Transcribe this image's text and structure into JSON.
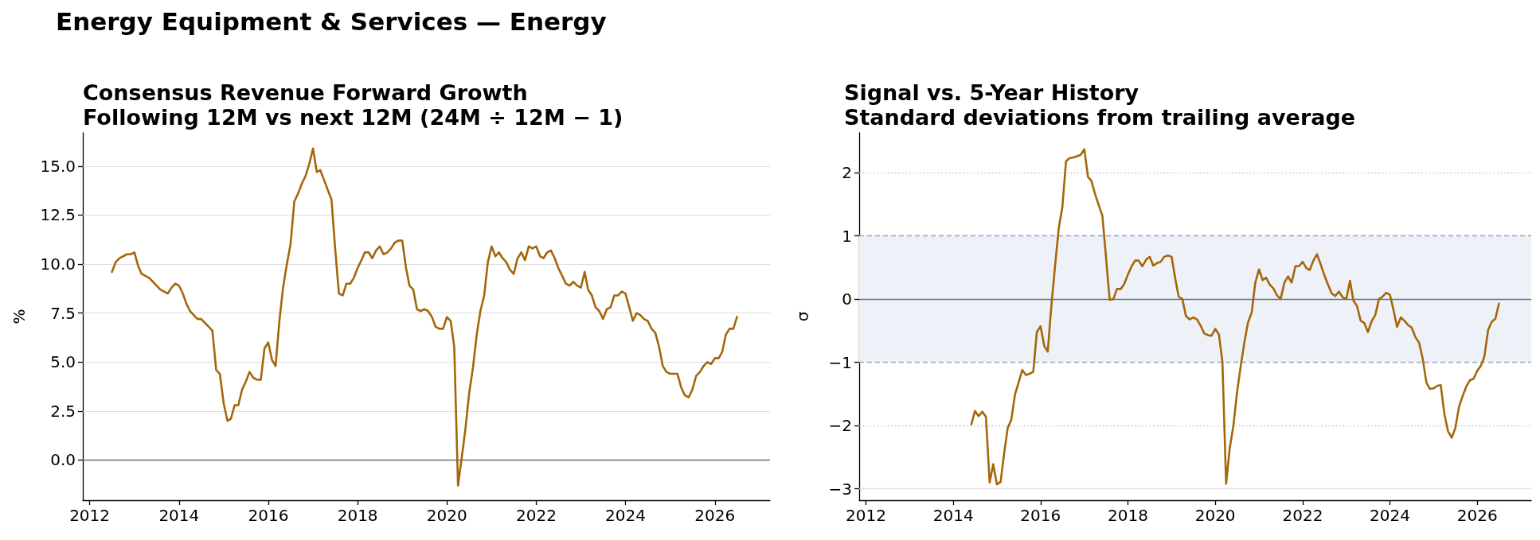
{
  "chart_data": [
    {
      "type": "line",
      "title": "Consensus Revenue Forward Growth",
      "subtitle": "Following 12M vs next 12M (24M ÷ 12M − 1)",
      "ylabel": "%",
      "annotations": [
        "Energy Equipment & Services — Energy"
      ],
      "x": [
        "2012-07",
        "2012-08",
        "2012-09",
        "2012-10",
        "2012-11",
        "2012-12",
        "2013-01",
        "2013-02",
        "2013-03",
        "2013-04",
        "2013-05",
        "2013-06",
        "2013-07",
        "2013-08",
        "2013-09",
        "2013-10",
        "2013-11",
        "2013-12",
        "2014-01",
        "2014-02",
        "2014-03",
        "2014-04",
        "2014-05",
        "2014-06",
        "2014-07",
        "2014-08",
        "2014-09",
        "2014-10",
        "2014-11",
        "2014-12",
        "2015-01",
        "2015-02",
        "2015-03",
        "2015-04",
        "2015-05",
        "2015-06",
        "2015-07",
        "2015-08",
        "2015-09",
        "2015-10",
        "2015-11",
        "2015-12",
        "2016-01",
        "2016-02",
        "2016-03",
        "2016-04",
        "2016-05",
        "2016-06",
        "2016-07",
        "2016-08",
        "2016-09",
        "2016-10",
        "2016-11",
        "2016-12",
        "2017-01",
        "2017-02",
        "2017-03",
        "2017-04",
        "2017-05",
        "2017-06",
        "2017-07",
        "2017-08",
        "2017-09",
        "2017-10",
        "2017-11",
        "2017-12",
        "2018-01",
        "2018-02",
        "2018-03",
        "2018-04",
        "2018-05",
        "2018-06",
        "2018-07",
        "2018-08",
        "2018-09",
        "2018-10",
        "2018-11",
        "2018-12",
        "2019-01",
        "2019-02",
        "2019-03",
        "2019-04",
        "2019-05",
        "2019-06",
        "2019-07",
        "2019-08",
        "2019-09",
        "2019-10",
        "2019-11",
        "2019-12",
        "2020-01",
        "2020-02",
        "2020-03",
        "2020-04",
        "2020-05",
        "2020-06",
        "2020-07",
        "2020-08",
        "2020-09",
        "2020-10",
        "2020-11",
        "2020-12",
        "2021-01",
        "2021-02",
        "2021-03",
        "2021-04",
        "2021-05",
        "2021-06",
        "2021-07",
        "2021-08",
        "2021-09",
        "2021-10",
        "2021-11",
        "2021-12",
        "2022-01",
        "2022-02",
        "2022-03",
        "2022-04",
        "2022-05",
        "2022-06",
        "2022-07",
        "2022-08",
        "2022-09",
        "2022-10",
        "2022-11",
        "2022-12",
        "2023-01",
        "2023-02",
        "2023-03",
        "2023-04",
        "2023-05",
        "2023-06",
        "2023-07",
        "2023-08",
        "2023-09",
        "2023-10",
        "2023-11",
        "2023-12",
        "2024-01",
        "2024-02",
        "2024-03",
        "2024-04",
        "2024-05",
        "2024-06",
        "2024-07",
        "2024-08",
        "2024-09",
        "2024-10",
        "2024-11",
        "2024-12",
        "2025-01",
        "2025-02",
        "2025-03",
        "2025-04",
        "2025-05",
        "2025-06",
        "2025-07",
        "2025-08",
        "2025-09",
        "2025-10",
        "2025-11",
        "2025-12",
        "2026-01",
        "2026-02",
        "2026-03",
        "2026-04",
        "2026-05",
        "2026-06",
        "2026-07"
      ],
      "series": [
        {
          "color": "#a5660a",
          "values": [
            9.6,
            10.1,
            10.3,
            10.4,
            10.5,
            10.5,
            10.6,
            9.9,
            9.5,
            9.4,
            9.3,
            9.1,
            8.9,
            8.7,
            8.6,
            8.5,
            8.8,
            9.0,
            8.9,
            8.5,
            8.0,
            7.6,
            7.4,
            7.2,
            7.2,
            7.0,
            6.8,
            6.6,
            4.6,
            4.4,
            2.9,
            2.0,
            2.1,
            2.8,
            2.8,
            3.6,
            4.0,
            4.5,
            4.2,
            4.1,
            4.1,
            5.7,
            6.0,
            5.1,
            4.8,
            7.1,
            8.8,
            10.0,
            11.0,
            13.2,
            13.6,
            14.1,
            14.5,
            15.1,
            15.9,
            14.7,
            14.8,
            14.3,
            13.8,
            13.3,
            10.8,
            8.5,
            8.4,
            9.0,
            9.0,
            9.3,
            9.8,
            10.2,
            10.6,
            10.6,
            10.3,
            10.7,
            10.9,
            10.5,
            10.6,
            10.8,
            11.1,
            11.2,
            11.2,
            9.8,
            8.9,
            8.7,
            7.7,
            7.6,
            7.7,
            7.6,
            7.3,
            6.8,
            6.7,
            6.7,
            7.3,
            7.1,
            5.8,
            -1.3,
            0.1,
            1.6,
            3.4,
            4.7,
            6.4,
            7.6,
            8.4,
            10.1,
            10.9,
            10.4,
            10.6,
            10.3,
            10.1,
            9.7,
            9.5,
            10.3,
            10.6,
            10.2,
            10.9,
            10.8,
            10.9,
            10.4,
            10.3,
            10.6,
            10.7,
            10.3,
            9.8,
            9.4,
            9.0,
            8.9,
            9.1,
            8.9,
            8.8,
            9.6,
            8.7,
            8.4,
            7.8,
            7.6,
            7.2,
            7.7,
            7.8,
            8.4,
            8.4,
            8.6,
            8.5,
            7.8,
            7.1,
            7.5,
            7.4,
            7.2,
            7.1,
            6.7,
            6.5,
            5.8,
            4.8,
            4.5,
            4.4,
            4.4,
            4.4,
            3.7,
            3.3,
            3.2,
            3.6,
            4.3,
            4.5,
            4.8,
            5.0,
            4.9,
            5.2,
            5.2,
            5.5,
            6.4,
            6.7,
            6.7,
            7.3
          ]
        }
      ],
      "xlim": [
        "2011-11-06",
        "2027-03-28"
      ],
      "xticks": [
        "2012",
        "2014",
        "2016",
        "2018",
        "2020",
        "2022",
        "2024",
        "2026"
      ],
      "ylim": [
        -2.05,
        16.7
      ],
      "yticks": [
        {
          "value": 0,
          "label": "0.0"
        },
        2.5,
        {
          "value": 5,
          "label": "5.0"
        },
        7.5,
        {
          "value": 10,
          "label": "10.0"
        },
        12.5,
        {
          "value": 15,
          "label": "15.0"
        }
      ],
      "ref_lines": [
        {
          "axis": "y",
          "value": 0,
          "color": "#6b7280",
          "line_style": "solid"
        }
      ],
      "grid": "y"
    },
    {
      "type": "line",
      "title": "Signal vs. 5-Year History",
      "subtitle": "Standard deviations from trailing average",
      "ylabel": "σ",
      "x": [
        "2014-06",
        "2014-07",
        "2014-08",
        "2014-09",
        "2014-10",
        "2014-11",
        "2014-12",
        "2015-01",
        "2015-02",
        "2015-03",
        "2015-04",
        "2015-05",
        "2015-06",
        "2015-07",
        "2015-08",
        "2015-09",
        "2015-10",
        "2015-11",
        "2015-12",
        "2016-01",
        "2016-02",
        "2016-03",
        "2016-04",
        "2016-05",
        "2016-06",
        "2016-07",
        "2016-08",
        "2016-09",
        "2016-10",
        "2016-11",
        "2016-12",
        "2017-01",
        "2017-02",
        "2017-03",
        "2017-04",
        "2017-05",
        "2017-06",
        "2017-07",
        "2017-08",
        "2017-09",
        "2017-10",
        "2017-11",
        "2017-12",
        "2018-01",
        "2018-02",
        "2018-03",
        "2018-04",
        "2018-05",
        "2018-06",
        "2018-07",
        "2018-08",
        "2018-09",
        "2018-10",
        "2018-11",
        "2018-12",
        "2019-01",
        "2019-02",
        "2019-03",
        "2019-04",
        "2019-05",
        "2019-06",
        "2019-07",
        "2019-08",
        "2019-09",
        "2019-10",
        "2019-11",
        "2019-12",
        "2020-01",
        "2020-02",
        "2020-03",
        "2020-04",
        "2020-05",
        "2020-06",
        "2020-07",
        "2020-08",
        "2020-09",
        "2020-10",
        "2020-11",
        "2020-12",
        "2021-01",
        "2021-02",
        "2021-03",
        "2021-04",
        "2021-05",
        "2021-06",
        "2021-07",
        "2021-08",
        "2021-09",
        "2021-10",
        "2021-11",
        "2021-12",
        "2022-01",
        "2022-02",
        "2022-03",
        "2022-04",
        "2022-05",
        "2022-06",
        "2022-07",
        "2022-08",
        "2022-09",
        "2022-10",
        "2022-11",
        "2022-12",
        "2023-01",
        "2023-02",
        "2023-03",
        "2023-04",
        "2023-05",
        "2023-06",
        "2023-07",
        "2023-08",
        "2023-09",
        "2023-10",
        "2023-11",
        "2023-12",
        "2024-01",
        "2024-02",
        "2024-03",
        "2024-04",
        "2024-05",
        "2024-06",
        "2024-07",
        "2024-08",
        "2024-09",
        "2024-10",
        "2024-11",
        "2024-12",
        "2025-01",
        "2025-02",
        "2025-03",
        "2025-04",
        "2025-05",
        "2025-06",
        "2025-07",
        "2025-08",
        "2025-09",
        "2025-10",
        "2025-11",
        "2025-12",
        "2026-01",
        "2026-02",
        "2026-03",
        "2026-04",
        "2026-05",
        "2026-06",
        "2026-07"
      ],
      "series": [
        {
          "color": "#a5660a",
          "values": [
            -1.98,
            -1.77,
            -1.85,
            -1.78,
            -1.86,
            -2.9,
            -2.61,
            -2.93,
            -2.89,
            -2.46,
            -2.04,
            -1.91,
            -1.51,
            -1.32,
            -1.12,
            -1.2,
            -1.18,
            -1.15,
            -0.52,
            -0.43,
            -0.74,
            -0.83,
            -0.09,
            0.52,
            1.12,
            1.45,
            2.18,
            2.23,
            2.24,
            2.26,
            2.28,
            2.37,
            1.93,
            1.87,
            1.66,
            1.49,
            1.32,
            0.67,
            -0.01,
            0.0,
            0.16,
            0.16,
            0.24,
            0.39,
            0.52,
            0.61,
            0.61,
            0.52,
            0.62,
            0.67,
            0.53,
            0.57,
            0.59,
            0.67,
            0.69,
            0.67,
            0.32,
            0.04,
            0.0,
            -0.27,
            -0.32,
            -0.29,
            -0.32,
            -0.42,
            -0.54,
            -0.57,
            -0.58,
            -0.47,
            -0.56,
            -0.99,
            -2.92,
            -2.36,
            -2.0,
            -1.48,
            -1.06,
            -0.68,
            -0.37,
            -0.21,
            0.26,
            0.47,
            0.3,
            0.34,
            0.23,
            0.17,
            0.06,
            0.0,
            0.26,
            0.36,
            0.26,
            0.52,
            0.52,
            0.59,
            0.49,
            0.46,
            0.61,
            0.71,
            0.55,
            0.38,
            0.23,
            0.09,
            0.05,
            0.12,
            0.03,
            0.0,
            0.29,
            -0.02,
            -0.11,
            -0.34,
            -0.38,
            -0.52,
            -0.35,
            -0.25,
            0.0,
            0.04,
            0.1,
            0.07,
            -0.18,
            -0.44,
            -0.29,
            -0.34,
            -0.41,
            -0.45,
            -0.6,
            -0.69,
            -0.94,
            -1.32,
            -1.42,
            -1.41,
            -1.37,
            -1.36,
            -1.82,
            -2.09,
            -2.19,
            -2.04,
            -1.7,
            -1.53,
            -1.38,
            -1.28,
            -1.26,
            -1.13,
            -1.05,
            -0.91,
            -0.49,
            -0.36,
            -0.31,
            -0.07
          ]
        }
      ],
      "xlim": [
        "2011-11-06",
        "2027-03-28"
      ],
      "xticks": [
        "2012",
        "2014",
        "2016",
        "2018",
        "2020",
        "2022",
        "2024",
        "2026"
      ],
      "ylim": [
        -3.18,
        2.63
      ],
      "yticks": [
        {
          "value": -3,
          "label": "−3"
        },
        {
          "value": -2,
          "label": "−2"
        },
        {
          "value": -1,
          "label": "−1"
        },
        0,
        1,
        2
      ],
      "bands": [
        {
          "axis": "y",
          "from": -1,
          "to": 1,
          "color": "#eef2f8"
        }
      ],
      "ref_lines": [
        {
          "axis": "y",
          "value": 0,
          "color": "#6b7280",
          "line_style": "solid"
        },
        {
          "axis": "y",
          "value": 1,
          "color": "#97a5bb",
          "line_style": "dashed"
        },
        {
          "axis": "y",
          "value": -1,
          "color": "#97a5bb",
          "line_style": "dashed"
        },
        {
          "axis": "y",
          "value": 2,
          "color": "#b9c4d3",
          "line_style": "dotted"
        },
        {
          "axis": "y",
          "value": -2,
          "color": "#b9c4d3",
          "line_style": "dotted"
        },
        {
          "axis": "y",
          "value": -3,
          "color": "#dcdde3",
          "line_style": "solid"
        }
      ]
    }
  ]
}
